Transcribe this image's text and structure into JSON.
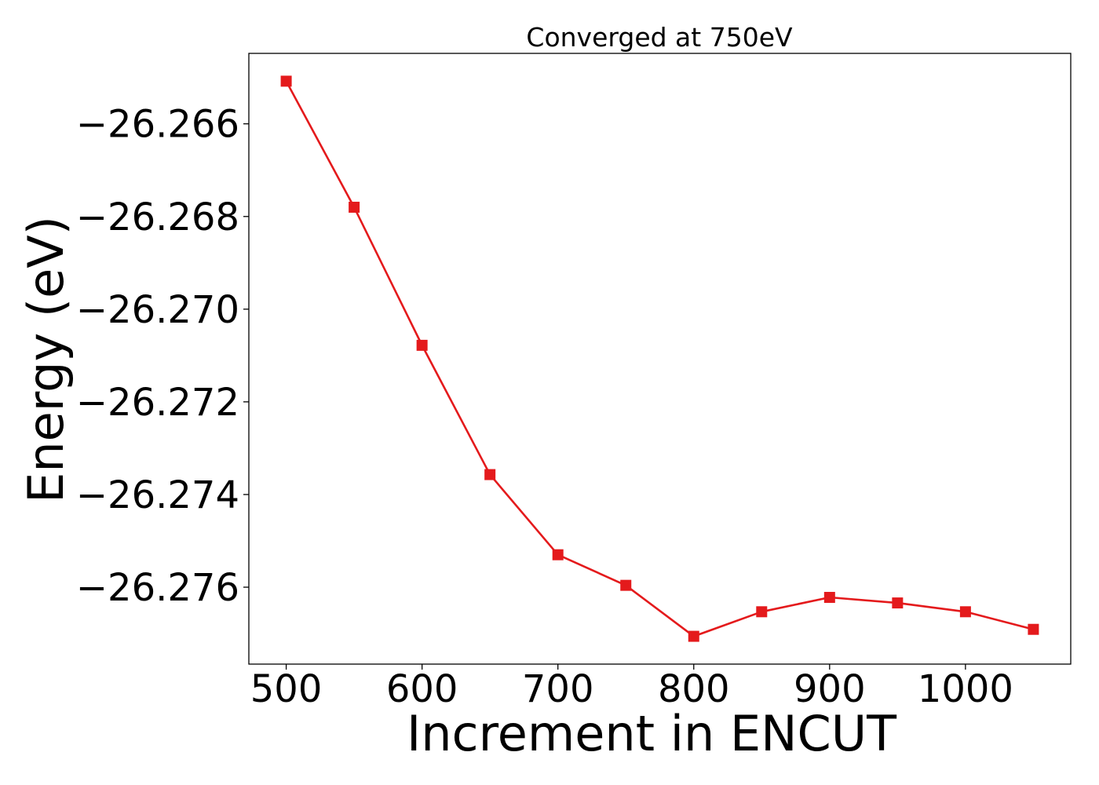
{
  "chart_data": {
    "type": "line",
    "title": "Converged at 750eV",
    "xlabel": "Increment in ENCUT",
    "ylabel": "Energy (eV)",
    "x": [
      500,
      550,
      600,
      650,
      700,
      750,
      800,
      850,
      900,
      950,
      1000,
      1050
    ],
    "series": [
      {
        "values": [
          -26.26508,
          -26.2678,
          -26.27078,
          -26.27357,
          -26.2753,
          -26.27596,
          -26.27706,
          -26.27653,
          -26.27622,
          -26.27634,
          -26.27653,
          -26.27691
        ],
        "color": "#e41a1c",
        "marker": "square"
      }
    ],
    "xlim": [
      472.5,
      1077.5
    ],
    "ylim": [
      -26.27766,
      -26.26448
    ],
    "xticks": [
      500,
      600,
      700,
      800,
      900,
      1000
    ],
    "xtick_labels": [
      "500",
      "600",
      "700",
      "800",
      "900",
      "1000"
    ],
    "yticks": [
      -26.266,
      -26.268,
      -26.27,
      -26.272,
      -26.274,
      -26.276
    ],
    "ytick_labels": [
      "−26.266",
      "−26.268",
      "−26.270",
      "−26.272",
      "−26.274",
      "−26.276"
    ],
    "grid": false
  }
}
